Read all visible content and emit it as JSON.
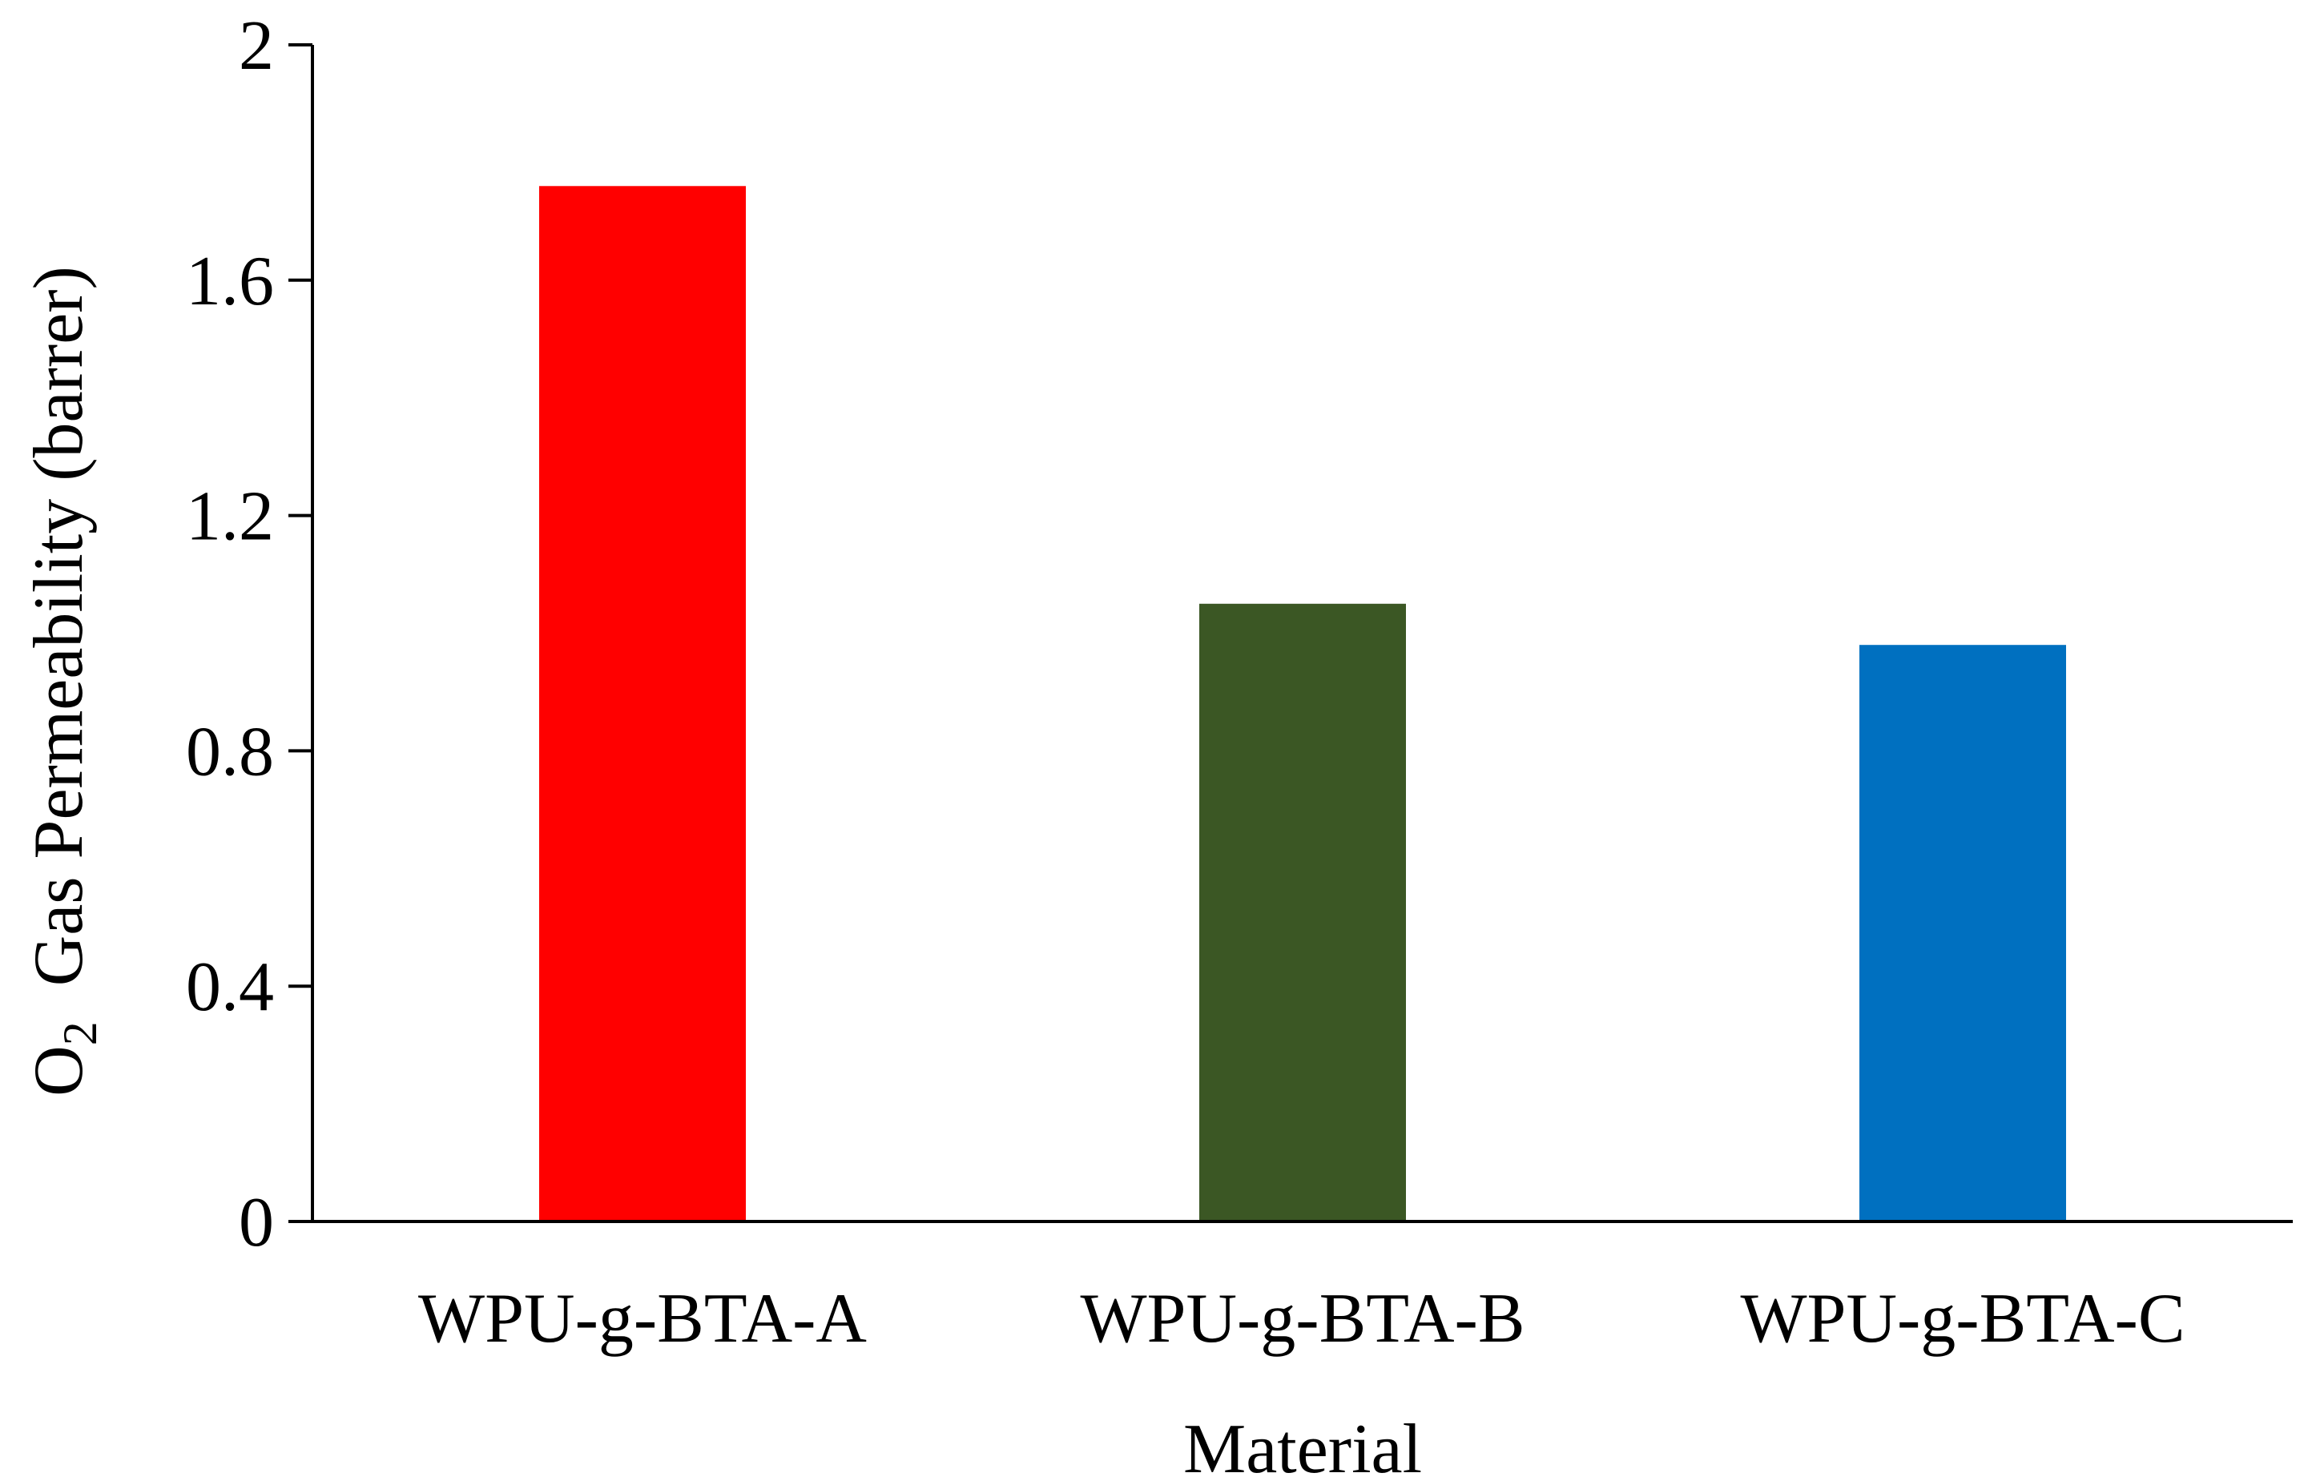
{
  "chart_data": {
    "type": "bar",
    "categories": [
      "WPU-g-BTA-A",
      "WPU-g-BTA-B",
      "WPU-g-BTA-C"
    ],
    "values": [
      1.76,
      1.05,
      0.98
    ],
    "colors": [
      "#ff0000",
      "#3b5724",
      "#0070c0"
    ],
    "xlabel": "Material",
    "ylabel": {
      "prefix": "O",
      "subscript": "2",
      "suffix": "  Gas Permeability (barrer)"
    },
    "ylim": [
      0,
      2
    ],
    "yticks": [
      0,
      0.4,
      0.8,
      1.2,
      1.6,
      2
    ],
    "ytick_labels": [
      "0",
      "0.4",
      "0.8",
      "1.2",
      "1.6",
      "2"
    ],
    "grid": false,
    "legend": "none"
  }
}
